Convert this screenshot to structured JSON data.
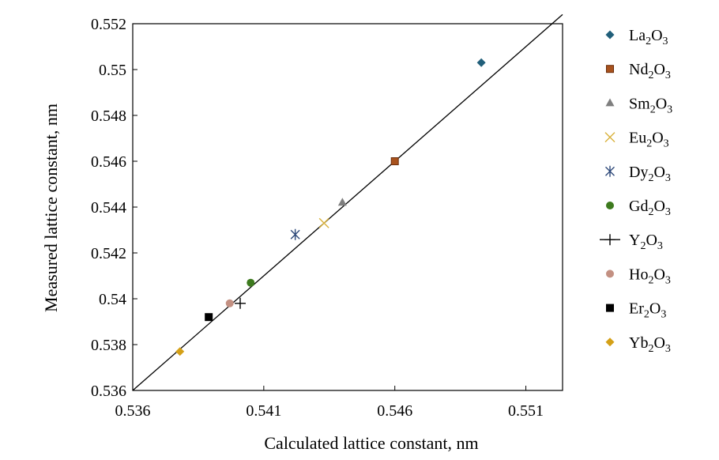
{
  "chart_data": {
    "type": "scatter",
    "title": "",
    "xlabel": "Calculated lattice constant, nm",
    "ylabel": "Measured  lattice constant, nm",
    "xlim": [
      0.536,
      0.5524
    ],
    "ylim": [
      0.536,
      0.552
    ],
    "xticks": [
      "0.536",
      "0.541",
      "0.546",
      "0.551"
    ],
    "yticks": [
      "0.536",
      "0.538",
      "0.54",
      "0.542",
      "0.544",
      "0.546",
      "0.548",
      "0.55",
      "0.552"
    ],
    "grid": false,
    "legend_position": "right",
    "reference_line": {
      "type": "line",
      "x": [
        0.536,
        0.5524
      ],
      "y": [
        0.536,
        0.5524
      ],
      "color": "#000000"
    },
    "series": [
      {
        "name": "La2O3",
        "base": "La",
        "marker": "diamond",
        "color": "#215F7A",
        "x": [
          0.5493
        ],
        "y": [
          0.5503
        ]
      },
      {
        "name": "Nd2O3",
        "base": "Nd",
        "marker": "square",
        "color": "#A8521D",
        "x": [
          0.546
        ],
        "y": [
          0.546
        ]
      },
      {
        "name": "Sm2O3",
        "base": "Sm",
        "marker": "triangle",
        "color": "#7F7F7F",
        "x": [
          0.544
        ],
        "y": [
          0.5442
        ]
      },
      {
        "name": "Eu2O3",
        "base": "Eu",
        "marker": "x",
        "color": "#D9B23C",
        "x": [
          0.5433
        ],
        "y": [
          0.5433
        ]
      },
      {
        "name": "Dy2O3",
        "base": "Dy",
        "marker": "asterisk",
        "color": "#2F4A7A",
        "x": [
          0.5422
        ],
        "y": [
          0.5428
        ]
      },
      {
        "name": "Gd2O3",
        "base": "Gd",
        "marker": "circle",
        "color": "#3D7A1E",
        "x": [
          0.5405
        ],
        "y": [
          0.5407
        ]
      },
      {
        "name": "Y2O3",
        "base": "Y",
        "marker": "plus",
        "color": "#000000",
        "x": [
          0.5401
        ],
        "y": [
          0.5398
        ]
      },
      {
        "name": "Ho2O3",
        "base": "Ho",
        "marker": "circle",
        "color": "#C39082",
        "x": [
          0.5397
        ],
        "y": [
          0.5398
        ]
      },
      {
        "name": "Er2O3",
        "base": "Er",
        "marker": "square",
        "color": "#000000",
        "x": [
          0.5389
        ],
        "y": [
          0.5392
        ]
      },
      {
        "name": "Yb2O3",
        "base": "Yb",
        "marker": "diamond",
        "color": "#D4A017",
        "x": [
          0.5378
        ],
        "y": [
          0.5377
        ]
      }
    ]
  }
}
